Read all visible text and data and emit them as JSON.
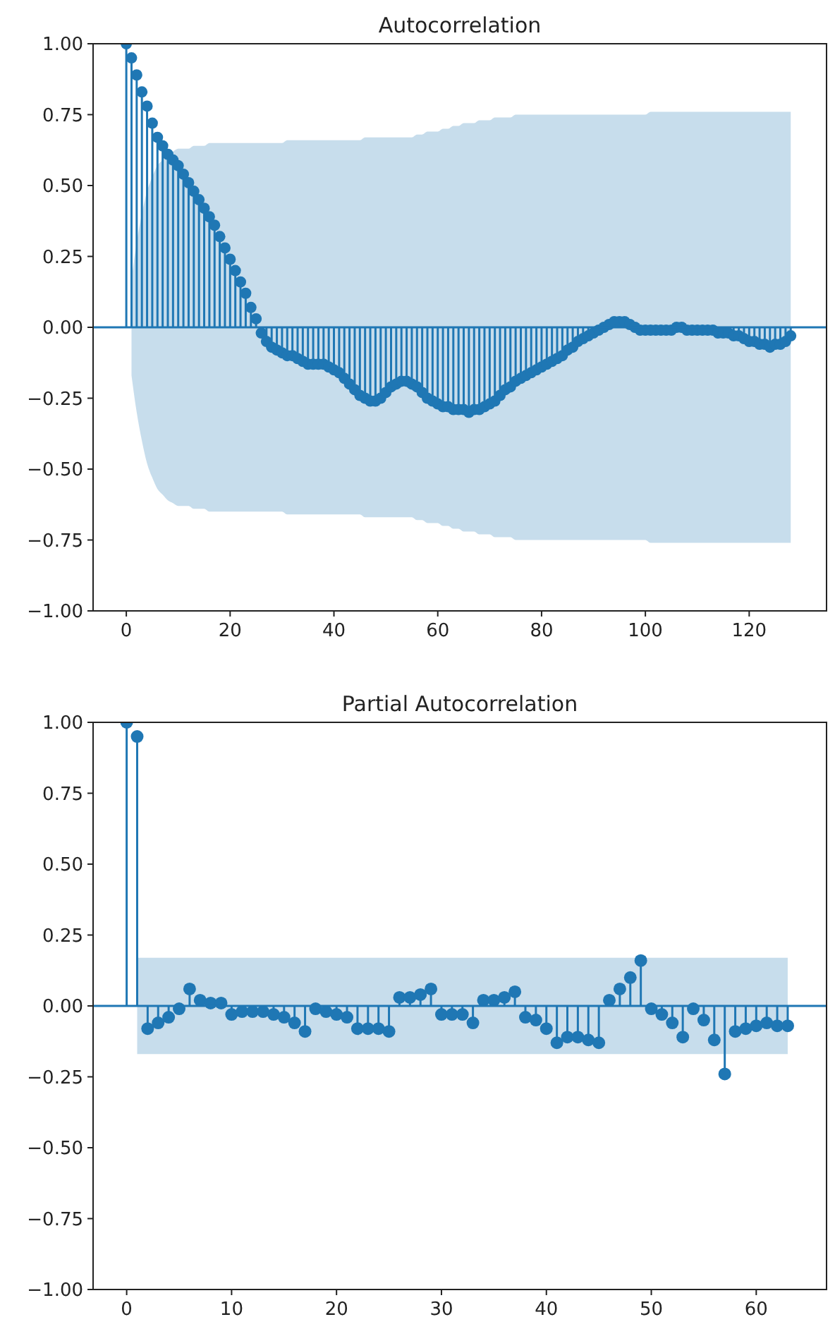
{
  "chart_data": [
    {
      "type": "lollipop",
      "title": "Autocorrelation",
      "xlim": [
        -6.4,
        134.9
      ],
      "xticks": [
        0,
        20,
        40,
        60,
        80,
        100,
        120
      ],
      "ylim": [
        -1,
        1
      ],
      "yticks": [
        {
          "value": -1,
          "label": "−1.00"
        },
        {
          "value": -0.75,
          "label": "−0.75"
        },
        {
          "value": -0.5,
          "label": "−0.50"
        },
        {
          "value": -0.25,
          "label": "−0.25"
        },
        {
          "value": 0,
          "label": "0.00"
        },
        {
          "value": 0.25,
          "label": "0.25"
        },
        {
          "value": 0.5,
          "label": "0.50"
        },
        {
          "value": 0.75,
          "label": "0.75"
        },
        {
          "value": 1,
          "label": "1.00"
        }
      ],
      "marker": "circle",
      "ref_lines": [
        {
          "axis": "y",
          "value": 0,
          "color": "#1f77b4"
        }
      ],
      "x": [
        0,
        1,
        2,
        3,
        4,
        5,
        6,
        7,
        8,
        9,
        10,
        11,
        12,
        13,
        14,
        15,
        16,
        17,
        18,
        19,
        20,
        21,
        22,
        23,
        24,
        25,
        26,
        27,
        28,
        29,
        30,
        31,
        32,
        33,
        34,
        35,
        36,
        37,
        38,
        39,
        40,
        41,
        42,
        43,
        44,
        45,
        46,
        47,
        48,
        49,
        50,
        51,
        52,
        53,
        54,
        55,
        56,
        57,
        58,
        59,
        60,
        61,
        62,
        63,
        64,
        65,
        66,
        67,
        68,
        69,
        70,
        71,
        72,
        73,
        74,
        75,
        76,
        77,
        78,
        79,
        80,
        81,
        82,
        83,
        84,
        85,
        86,
        87,
        88,
        89,
        90,
        91,
        92,
        93,
        94,
        95,
        96,
        97,
        98,
        99,
        100,
        101,
        102,
        103,
        104,
        105,
        106,
        107,
        108,
        109,
        110,
        111,
        112,
        113,
        114,
        115,
        116,
        117,
        118,
        119,
        120,
        121,
        122,
        123,
        124,
        125,
        126,
        127,
        128
      ],
      "series": [
        {
          "type": "lollipop",
          "color": "#1f77b4",
          "values": [
            1.0,
            0.95,
            0.89,
            0.83,
            0.78,
            0.72,
            0.67,
            0.64,
            0.61,
            0.59,
            0.57,
            0.54,
            0.51,
            0.48,
            0.45,
            0.42,
            0.39,
            0.36,
            0.32,
            0.28,
            0.24,
            0.2,
            0.16,
            0.12,
            0.07,
            0.03,
            -0.02,
            -0.05,
            -0.07,
            -0.08,
            -0.09,
            -0.1,
            -0.1,
            -0.11,
            -0.12,
            -0.13,
            -0.13,
            -0.13,
            -0.13,
            -0.14,
            -0.15,
            -0.16,
            -0.18,
            -0.2,
            -0.22,
            -0.24,
            -0.25,
            -0.26,
            -0.26,
            -0.25,
            -0.23,
            -0.21,
            -0.2,
            -0.19,
            -0.19,
            -0.2,
            -0.21,
            -0.23,
            -0.25,
            -0.26,
            -0.27,
            -0.28,
            -0.28,
            -0.29,
            -0.29,
            -0.29,
            -0.3,
            -0.29,
            -0.29,
            -0.28,
            -0.27,
            -0.26,
            -0.24,
            -0.22,
            -0.21,
            -0.19,
            -0.18,
            -0.17,
            -0.16,
            -0.15,
            -0.14,
            -0.13,
            -0.12,
            -0.11,
            -0.1,
            -0.08,
            -0.07,
            -0.05,
            -0.04,
            -0.03,
            -0.02,
            -0.01,
            0.0,
            0.01,
            0.02,
            0.02,
            0.02,
            0.01,
            0.0,
            -0.01,
            -0.01,
            -0.01,
            -0.01,
            -0.01,
            -0.01,
            -0.01,
            0.0,
            0.0,
            -0.01,
            -0.01,
            -0.01,
            -0.01,
            -0.01,
            -0.01,
            -0.02,
            -0.02,
            -0.02,
            -0.03,
            -0.03,
            -0.04,
            -0.05,
            -0.05,
            -0.06,
            -0.06,
            -0.07,
            -0.06,
            -0.06,
            -0.05,
            -0.03
          ],
          "upper": [
            null,
            0.17,
            0.3,
            0.4,
            0.48,
            0.53,
            0.57,
            0.59,
            0.61,
            0.62,
            0.63,
            0.63,
            0.63,
            0.64,
            0.64,
            0.64,
            0.65,
            0.65,
            0.65,
            0.65,
            0.65,
            0.65,
            0.65,
            0.65,
            0.65,
            0.65,
            0.65,
            0.65,
            0.65,
            0.65,
            0.65,
            0.66,
            0.66,
            0.66,
            0.66,
            0.66,
            0.66,
            0.66,
            0.66,
            0.66,
            0.66,
            0.66,
            0.66,
            0.66,
            0.66,
            0.66,
            0.67,
            0.67,
            0.67,
            0.67,
            0.67,
            0.67,
            0.67,
            0.67,
            0.67,
            0.67,
            0.68,
            0.68,
            0.69,
            0.69,
            0.69,
            0.7,
            0.7,
            0.71,
            0.71,
            0.72,
            0.72,
            0.72,
            0.73,
            0.73,
            0.73,
            0.74,
            0.74,
            0.74,
            0.74,
            0.75,
            0.75,
            0.75,
            0.75,
            0.75,
            0.75,
            0.75,
            0.75,
            0.75,
            0.75,
            0.75,
            0.75,
            0.75,
            0.75,
            0.75,
            0.75,
            0.75,
            0.75,
            0.75,
            0.75,
            0.75,
            0.75,
            0.75,
            0.75,
            0.75,
            0.75,
            0.76,
            0.76,
            0.76,
            0.76,
            0.76,
            0.76,
            0.76,
            0.76,
            0.76,
            0.76,
            0.76,
            0.76,
            0.76,
            0.76,
            0.76,
            0.76,
            0.76,
            0.76,
            0.76,
            0.76,
            0.76,
            0.76,
            0.76,
            0.76,
            0.76,
            0.76,
            0.76,
            0.76
          ],
          "lower": [
            null,
            -0.17,
            -0.3,
            -0.4,
            -0.48,
            -0.53,
            -0.57,
            -0.59,
            -0.61,
            -0.62,
            -0.63,
            -0.63,
            -0.63,
            -0.64,
            -0.64,
            -0.64,
            -0.65,
            -0.65,
            -0.65,
            -0.65,
            -0.65,
            -0.65,
            -0.65,
            -0.65,
            -0.65,
            -0.65,
            -0.65,
            -0.65,
            -0.65,
            -0.65,
            -0.65,
            -0.66,
            -0.66,
            -0.66,
            -0.66,
            -0.66,
            -0.66,
            -0.66,
            -0.66,
            -0.66,
            -0.66,
            -0.66,
            -0.66,
            -0.66,
            -0.66,
            -0.66,
            -0.67,
            -0.67,
            -0.67,
            -0.67,
            -0.67,
            -0.67,
            -0.67,
            -0.67,
            -0.67,
            -0.67,
            -0.68,
            -0.68,
            -0.69,
            -0.69,
            -0.69,
            -0.7,
            -0.7,
            -0.71,
            -0.71,
            -0.72,
            -0.72,
            -0.72,
            -0.73,
            -0.73,
            -0.73,
            -0.74,
            -0.74,
            -0.74,
            -0.74,
            -0.75,
            -0.75,
            -0.75,
            -0.75,
            -0.75,
            -0.75,
            -0.75,
            -0.75,
            -0.75,
            -0.75,
            -0.75,
            -0.75,
            -0.75,
            -0.75,
            -0.75,
            -0.75,
            -0.75,
            -0.75,
            -0.75,
            -0.75,
            -0.75,
            -0.75,
            -0.75,
            -0.75,
            -0.75,
            -0.75,
            -0.76,
            -0.76,
            -0.76,
            -0.76,
            -0.76,
            -0.76,
            -0.76,
            -0.76,
            -0.76,
            -0.76,
            -0.76,
            -0.76,
            -0.76,
            -0.76,
            -0.76,
            -0.76,
            -0.76,
            -0.76,
            -0.76,
            -0.76,
            -0.76,
            -0.76,
            -0.76,
            -0.76,
            -0.76,
            -0.76,
            -0.76,
            -0.76
          ]
        }
      ]
    },
    {
      "type": "lollipop",
      "title": "Partial Autocorrelation",
      "xlim": [
        -3.2,
        66.7
      ],
      "xticks": [
        0,
        10,
        20,
        30,
        40,
        50,
        60
      ],
      "ylim": [
        -1,
        1
      ],
      "yticks": [
        {
          "value": -1,
          "label": "−1.00"
        },
        {
          "value": -0.75,
          "label": "−0.75"
        },
        {
          "value": -0.5,
          "label": "−0.50"
        },
        {
          "value": -0.25,
          "label": "−0.25"
        },
        {
          "value": 0,
          "label": "0.00"
        },
        {
          "value": 0.25,
          "label": "0.25"
        },
        {
          "value": 0.5,
          "label": "0.50"
        },
        {
          "value": 0.75,
          "label": "0.75"
        },
        {
          "value": 1,
          "label": "1.00"
        }
      ],
      "marker": "circle",
      "ref_lines": [
        {
          "axis": "y",
          "value": 0,
          "color": "#1f77b4"
        }
      ],
      "x": [
        0,
        1,
        2,
        3,
        4,
        5,
        6,
        7,
        8,
        9,
        10,
        11,
        12,
        13,
        14,
        15,
        16,
        17,
        18,
        19,
        20,
        21,
        22,
        23,
        24,
        25,
        26,
        27,
        28,
        29,
        30,
        31,
        32,
        33,
        34,
        35,
        36,
        37,
        38,
        39,
        40,
        41,
        42,
        43,
        44,
        45,
        46,
        47,
        48,
        49,
        50,
        51,
        52,
        53,
        54,
        55,
        56,
        57,
        58,
        59,
        60,
        61,
        62,
        63
      ],
      "series": [
        {
          "type": "lollipop",
          "color": "#1f77b4",
          "values": [
            1.0,
            0.95,
            -0.08,
            -0.06,
            -0.04,
            -0.01,
            0.06,
            0.02,
            0.01,
            0.01,
            -0.03,
            -0.02,
            -0.02,
            -0.02,
            -0.03,
            -0.04,
            -0.06,
            -0.09,
            -0.01,
            -0.02,
            -0.03,
            -0.04,
            -0.08,
            -0.08,
            -0.08,
            -0.09,
            0.03,
            0.03,
            0.04,
            0.06,
            -0.03,
            -0.03,
            -0.03,
            -0.06,
            0.02,
            0.02,
            0.03,
            0.05,
            -0.04,
            -0.05,
            -0.08,
            -0.13,
            -0.11,
            -0.11,
            -0.12,
            -0.13,
            0.02,
            0.06,
            0.1,
            0.16,
            -0.01,
            -0.03,
            -0.06,
            -0.11,
            -0.01,
            -0.05,
            -0.12,
            -0.24,
            -0.09,
            -0.08,
            -0.07,
            -0.06,
            -0.07,
            -0.07
          ],
          "upper": [
            null,
            0.17,
            0.17,
            0.17,
            0.17,
            0.17,
            0.17,
            0.17,
            0.17,
            0.17,
            0.17,
            0.17,
            0.17,
            0.17,
            0.17,
            0.17,
            0.17,
            0.17,
            0.17,
            0.17,
            0.17,
            0.17,
            0.17,
            0.17,
            0.17,
            0.17,
            0.17,
            0.17,
            0.17,
            0.17,
            0.17,
            0.17,
            0.17,
            0.17,
            0.17,
            0.17,
            0.17,
            0.17,
            0.17,
            0.17,
            0.17,
            0.17,
            0.17,
            0.17,
            0.17,
            0.17,
            0.17,
            0.17,
            0.17,
            0.17,
            0.17,
            0.17,
            0.17,
            0.17,
            0.17,
            0.17,
            0.17,
            0.17,
            0.17,
            0.17,
            0.17,
            0.17,
            0.17,
            0.17
          ],
          "lower": [
            null,
            -0.17,
            -0.17,
            -0.17,
            -0.17,
            -0.17,
            -0.17,
            -0.17,
            -0.17,
            -0.17,
            -0.17,
            -0.17,
            -0.17,
            -0.17,
            -0.17,
            -0.17,
            -0.17,
            -0.17,
            -0.17,
            -0.17,
            -0.17,
            -0.17,
            -0.17,
            -0.17,
            -0.17,
            -0.17,
            -0.17,
            -0.17,
            -0.17,
            -0.17,
            -0.17,
            -0.17,
            -0.17,
            -0.17,
            -0.17,
            -0.17,
            -0.17,
            -0.17,
            -0.17,
            -0.17,
            -0.17,
            -0.17,
            -0.17,
            -0.17,
            -0.17,
            -0.17,
            -0.17,
            -0.17,
            -0.17,
            -0.17,
            -0.17,
            -0.17,
            -0.17,
            -0.17,
            -0.17,
            -0.17,
            -0.17,
            -0.17,
            -0.17,
            -0.17,
            -0.17,
            -0.17,
            -0.17,
            -0.17
          ]
        }
      ]
    }
  ]
}
